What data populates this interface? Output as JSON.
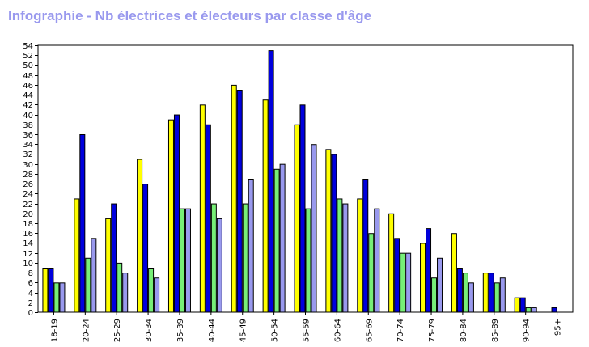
{
  "chart_data": {
    "type": "bar",
    "title": "Infographie - Nb électrices et électeurs par classe d'âge",
    "xlabel": "",
    "ylabel": "",
    "ylim": [
      0,
      54
    ],
    "yticks": [
      0,
      2,
      4,
      6,
      8,
      10,
      12,
      14,
      16,
      18,
      20,
      22,
      24,
      26,
      28,
      30,
      32,
      34,
      36,
      38,
      40,
      42,
      44,
      46,
      48,
      50,
      52,
      54
    ],
    "grid": false,
    "legend": "none",
    "categories": [
      "18-19",
      "20-24",
      "25-29",
      "30-34",
      "35-39",
      "40-44",
      "45-49",
      "50-54",
      "55-59",
      "60-64",
      "65-69",
      "70-74",
      "75-79",
      "80-84",
      "85-89",
      "90-94",
      "95+"
    ],
    "series": [
      {
        "color": "#ffff00",
        "values": [
          9,
          23,
          19,
          31,
          39,
          42,
          46,
          43,
          38,
          33,
          23,
          20,
          14,
          16,
          8,
          3,
          0
        ]
      },
      {
        "color": "#0000dd",
        "values": [
          9,
          36,
          22,
          26,
          40,
          38,
          45,
          53,
          42,
          32,
          27,
          15,
          17,
          9,
          8,
          3,
          1
        ]
      },
      {
        "color": "#77ee77",
        "values": [
          6,
          11,
          10,
          9,
          21,
          22,
          22,
          29,
          21,
          23,
          16,
          12,
          7,
          8,
          6,
          1,
          0
        ]
      },
      {
        "color": "#9999ee",
        "values": [
          6,
          15,
          8,
          7,
          21,
          19,
          27,
          30,
          34,
          22,
          21,
          12,
          11,
          6,
          7,
          1,
          0
        ]
      }
    ]
  }
}
